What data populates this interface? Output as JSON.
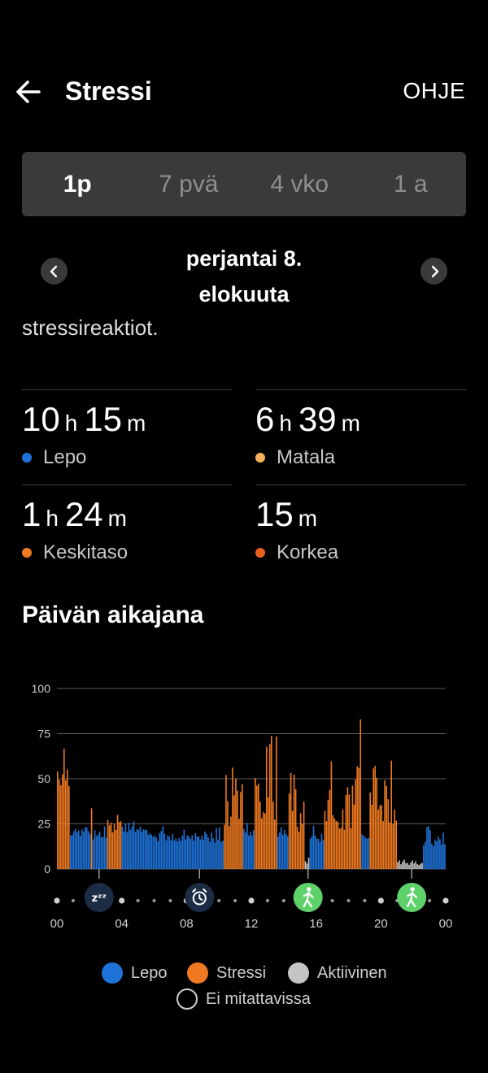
{
  "header": {
    "title": "Stressi",
    "help_label": "OHJE",
    "back_icon": "arrow-left-icon"
  },
  "tabs": [
    {
      "label": "1p",
      "active": true
    },
    {
      "label": "7 pvä",
      "active": false
    },
    {
      "label": "4 vko",
      "active": false
    },
    {
      "label": "1 a",
      "active": false
    }
  ],
  "date_nav": {
    "line1": "perjantai 8.",
    "line2": "elokuuta",
    "prev_icon": "chevron-left-icon",
    "next_icon": "chevron-right-icon"
  },
  "clipped_text": "stressireaktiot.",
  "stats": [
    {
      "h": "10",
      "h_unit": "h",
      "m": "15",
      "m_unit": "m",
      "label": "Lepo",
      "color": "#1e73d8"
    },
    {
      "h": "6",
      "h_unit": "h",
      "m": "39",
      "m_unit": "m",
      "label": "Matala",
      "color": "#f6b15a"
    },
    {
      "h": "1",
      "h_unit": "h",
      "m": "24",
      "m_unit": "m",
      "label": "Keskitaso",
      "color": "#f07a21"
    },
    {
      "h": "",
      "h_unit": "",
      "m": "15",
      "m_unit": "m",
      "label": "Korkea",
      "color": "#e8611a"
    }
  ],
  "timeline_title": "Päivän aikajana",
  "chart_data": {
    "type": "bar",
    "ylim": [
      0,
      100
    ],
    "yticks": [
      "100",
      "75",
      "50",
      "25",
      "0"
    ],
    "xticks": [
      "00",
      "04",
      "08",
      "12",
      "16",
      "20",
      "00"
    ],
    "grid": true,
    "colors": {
      "rest": "#1e73d8",
      "stress": "#f07a21",
      "active": "#c4c4c4"
    },
    "segments": [
      {
        "type": "stress",
        "start": 0.0,
        "end": 0.8,
        "base": 45,
        "max": 78
      },
      {
        "type": "rest",
        "start": 0.8,
        "end": 2.1,
        "base": 18,
        "max": 26
      },
      {
        "type": "stress",
        "start": 2.1,
        "end": 2.2,
        "base": 30,
        "max": 45
      },
      {
        "type": "rest",
        "start": 2.2,
        "end": 3.1,
        "base": 14,
        "max": 24
      },
      {
        "type": "stress",
        "start": 3.1,
        "end": 4.0,
        "base": 20,
        "max": 33
      },
      {
        "type": "rest",
        "start": 4.0,
        "end": 5.6,
        "base": 20,
        "max": 27
      },
      {
        "type": "rest",
        "start": 5.6,
        "end": 9.0,
        "base": 15,
        "max": 24
      },
      {
        "type": "rest",
        "start": 9.0,
        "end": 10.3,
        "base": 14,
        "max": 26
      },
      {
        "type": "stress",
        "start": 10.3,
        "end": 11.5,
        "base": 20,
        "max": 58
      },
      {
        "type": "rest",
        "start": 11.5,
        "end": 12.2,
        "base": 18,
        "max": 26
      },
      {
        "type": "stress",
        "start": 12.2,
        "end": 13.6,
        "base": 25,
        "max": 77
      },
      {
        "type": "rest",
        "start": 13.6,
        "end": 14.3,
        "base": 16,
        "max": 25
      },
      {
        "type": "stress",
        "start": 14.3,
        "end": 15.3,
        "base": 20,
        "max": 55
      },
      {
        "type": "active",
        "start": 15.3,
        "end": 15.6,
        "base": 2,
        "max": 8
      },
      {
        "type": "rest",
        "start": 15.6,
        "end": 16.5,
        "base": 15,
        "max": 25
      },
      {
        "type": "stress",
        "start": 16.5,
        "end": 18.4,
        "base": 20,
        "max": 60
      },
      {
        "type": "stress",
        "start": 18.4,
        "end": 18.8,
        "base": 30,
        "max": 84
      },
      {
        "type": "rest",
        "start": 18.8,
        "end": 19.3,
        "base": 16,
        "max": 25
      },
      {
        "type": "stress",
        "start": 19.3,
        "end": 21.0,
        "base": 22,
        "max": 68
      },
      {
        "type": "active",
        "start": 21.0,
        "end": 22.6,
        "base": 2,
        "max": 6
      },
      {
        "type": "rest",
        "start": 22.6,
        "end": 24.0,
        "base": 12,
        "max": 24
      }
    ],
    "events": [
      {
        "hour": 2.6,
        "icon": "sleep-icon"
      },
      {
        "hour": 8.8,
        "icon": "alarm-clock-icon"
      },
      {
        "hour": 15.5,
        "icon": "walking-icon"
      },
      {
        "hour": 21.9,
        "icon": "walking-icon"
      }
    ],
    "legend": [
      {
        "label": "Lepo",
        "color": "#1e73d8"
      },
      {
        "label": "Stressi",
        "color": "#f07a21"
      },
      {
        "label": "Aktiivinen",
        "color": "#c4c4c4"
      },
      {
        "label": "Ei mitattavissa",
        "color": "none"
      }
    ]
  }
}
